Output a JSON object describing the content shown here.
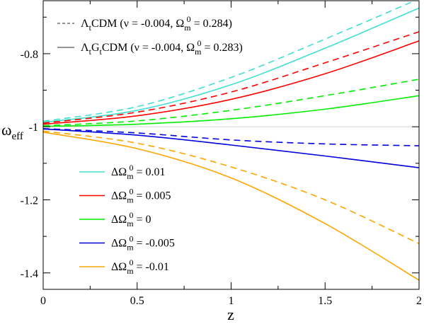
{
  "chart_data": {
    "type": "line",
    "xlabel": "z",
    "ylabel": {
      "main": "ω",
      "sub": "eff"
    },
    "xlim": [
      0,
      2
    ],
    "ylim": [
      -1.445,
      -0.655
    ],
    "x_ticks": [
      {
        "value": 0,
        "label": "0"
      },
      {
        "value": 0.5,
        "label": "0.5"
      },
      {
        "value": 1,
        "label": "1"
      },
      {
        "value": 1.5,
        "label": "1.5"
      },
      {
        "value": 2,
        "label": "2"
      }
    ],
    "y_ticks": [
      {
        "value": -0.8,
        "label": "-0.8"
      },
      {
        "value": -1.0,
        "label": "-1"
      },
      {
        "value": -1.2,
        "label": "-1.2"
      },
      {
        "value": -1.4,
        "label": "-1.4"
      }
    ],
    "reference_line": {
      "y": -1.0,
      "color": "#d3d3d3"
    },
    "style_legend": [
      {
        "style": "dashed",
        "segments": [
          {
            "text": "Λ"
          },
          {
            "text": "t",
            "sub": true
          },
          {
            "text": "CDM  (ν = -0.004, Ω"
          },
          {
            "text": "m",
            "sub": true
          },
          {
            "text": "0",
            "sup": true
          },
          {
            "text": " = 0.284)"
          }
        ]
      },
      {
        "style": "solid",
        "segments": [
          {
            "text": "Λ"
          },
          {
            "text": "t",
            "sub": true
          },
          {
            "text": "G"
          },
          {
            "text": "t",
            "sub": true
          },
          {
            "text": "CDM  (ν = -0.004, Ω"
          },
          {
            "text": "m",
            "sub": true
          },
          {
            "text": "0",
            "sup": true
          },
          {
            "text": " = 0.283)"
          }
        ]
      }
    ],
    "color_legend": [
      {
        "prefix": "ΔΩ",
        "sub": "m",
        "sup": "0",
        "value": " = 0.01",
        "color": "#40e0d0"
      },
      {
        "prefix": "ΔΩ",
        "sub": "m",
        "sup": "0",
        "value": " = 0.005",
        "color": "#ff0000"
      },
      {
        "prefix": "ΔΩ",
        "sub": "m",
        "sup": "0",
        "value": " = 0",
        "color": "#00ee00"
      },
      {
        "prefix": "ΔΩ",
        "sub": "m",
        "sup": "0",
        "value": " = -0.005",
        "color": "#0000dd"
      },
      {
        "prefix": "ΔΩ",
        "sub": "m",
        "sup": "0",
        "value": " = -0.01",
        "color": "#ffa500"
      }
    ],
    "series": [
      {
        "color": "#40e0d0",
        "dash": true,
        "x": [
          0,
          0.5,
          1.0,
          1.5,
          2.0
        ],
        "y": [
          -0.985,
          -0.945,
          -0.865,
          -0.76,
          -0.65
        ]
      },
      {
        "color": "#40e0d0",
        "dash": false,
        "x": [
          0,
          0.5,
          1.0,
          1.5,
          2.0
        ],
        "y": [
          -0.988,
          -0.955,
          -0.885,
          -0.785,
          -0.675
        ]
      },
      {
        "color": "#ff0000",
        "dash": true,
        "x": [
          0,
          0.5,
          1.0,
          1.5,
          2.0
        ],
        "y": [
          -0.99,
          -0.96,
          -0.905,
          -0.825,
          -0.74
        ]
      },
      {
        "color": "#ff0000",
        "dash": false,
        "x": [
          0,
          0.5,
          1.0,
          1.5,
          2.0
        ],
        "y": [
          -0.993,
          -0.97,
          -0.925,
          -0.855,
          -0.765
        ]
      },
      {
        "color": "#00ee00",
        "dash": true,
        "x": [
          0,
          0.5,
          1.0,
          1.5,
          2.0
        ],
        "y": [
          -0.997,
          -0.984,
          -0.955,
          -0.915,
          -0.87
        ]
      },
      {
        "color": "#00ee00",
        "dash": false,
        "x": [
          0,
          0.5,
          1.0,
          1.5,
          2.0
        ],
        "y": [
          -0.999,
          -0.993,
          -0.978,
          -0.952,
          -0.915
        ]
      },
      {
        "color": "#0000dd",
        "dash": true,
        "x": [
          0,
          0.5,
          1.0,
          1.5,
          2.0
        ],
        "y": [
          -1.005,
          -1.017,
          -1.036,
          -1.047,
          -1.052
        ]
      },
      {
        "color": "#0000dd",
        "dash": false,
        "x": [
          0,
          0.5,
          1.0,
          1.5,
          2.0
        ],
        "y": [
          -1.006,
          -1.023,
          -1.05,
          -1.08,
          -1.112
        ]
      },
      {
        "color": "#ffa500",
        "dash": true,
        "x": [
          0,
          0.5,
          1.0,
          1.5,
          2.0
        ],
        "y": [
          -1.012,
          -1.045,
          -1.11,
          -1.2,
          -1.32
        ]
      },
      {
        "color": "#ffa500",
        "dash": false,
        "x": [
          0,
          0.5,
          1.0,
          1.5,
          2.0
        ],
        "y": [
          -1.015,
          -1.06,
          -1.14,
          -1.265,
          -1.42
        ]
      }
    ]
  }
}
